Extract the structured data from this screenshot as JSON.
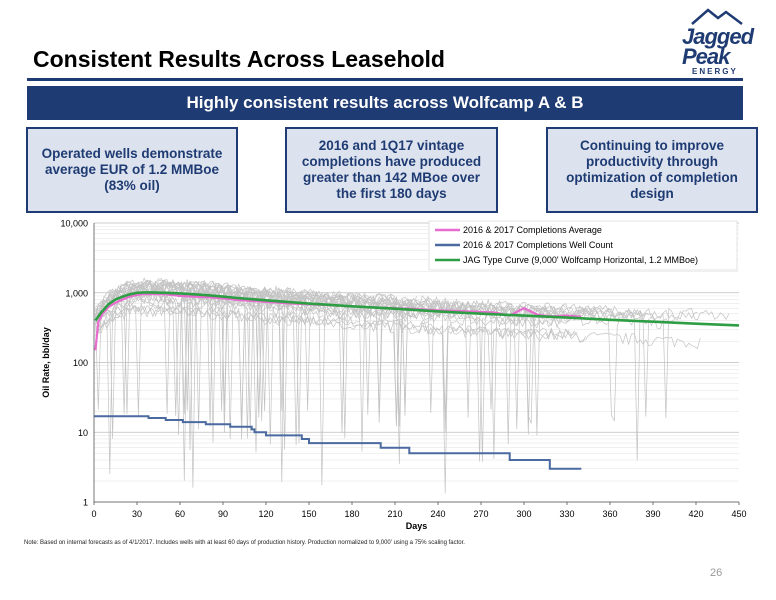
{
  "slide": {
    "title": "Consistent Results Across Leasehold",
    "banner": "Highly consistent results across Wolfcamp A & B",
    "boxes": [
      "Operated wells demonstrate average EUR of 1.2 MMBoe (83% oil)",
      "2016 and 1Q17 vintage completions have produced greater than 142 MBoe over the first 180 days",
      "Continuing to improve productivity through optimization of completion design"
    ],
    "note": "Note: Based on internal forecasts as of 4/1/2017. Includes wells with at least 60 days of production history. Production normalized to 9,000' using a 75% scaling factor.",
    "page_number": "26"
  },
  "logo": {
    "line1": "Jagged",
    "line2": "Peak",
    "line3": "ENERGY"
  },
  "colors": {
    "navy": "#1f3b73",
    "box_fill": "#dde3ee",
    "average": "#e86ccf",
    "well_count": "#4a6aa0",
    "type_curve": "#2e9e44",
    "individual_wells": "#c3c3c3"
  },
  "chart_data": {
    "type": "line",
    "y_scale": "log",
    "xlim": [
      0,
      450
    ],
    "ylim": [
      1,
      10000
    ],
    "xlabel": "Days",
    "ylabel": "Oil Rate, bbl/day",
    "x_ticks": [
      0,
      30,
      60,
      90,
      120,
      150,
      180,
      210,
      240,
      270,
      300,
      330,
      360,
      390,
      420,
      450
    ],
    "y_ticks": [
      1,
      10,
      100,
      1000,
      10000
    ],
    "y_tick_labels": [
      "1",
      "10",
      "100",
      "1,000",
      "10,000"
    ],
    "grid": "horizontal",
    "legend_position": "top-right",
    "series": [
      {
        "name": "2016 & 2017 Completions Average",
        "x": [
          1,
          3,
          6,
          10,
          15,
          20,
          25,
          30,
          35,
          40,
          50,
          60,
          70,
          80,
          90,
          100,
          120,
          140,
          160,
          180,
          200,
          220,
          240,
          260,
          280,
          290,
          300,
          310,
          320,
          330,
          340
        ],
        "y": [
          150,
          380,
          500,
          620,
          720,
          800,
          880,
          930,
          960,
          960,
          950,
          900,
          880,
          860,
          830,
          790,
          740,
          700,
          670,
          640,
          610,
          590,
          560,
          540,
          520,
          470,
          600,
          480,
          460,
          470,
          450
        ]
      },
      {
        "name": "2016 & 2017 Completions Well Count",
        "x": [
          0,
          20,
          20,
          38,
          38,
          50,
          50,
          62,
          62,
          78,
          78,
          95,
          95,
          110,
          110,
          112,
          112,
          120,
          120,
          145,
          145,
          150,
          150,
          165,
          165,
          200,
          200,
          220,
          220,
          260,
          260,
          290,
          290,
          318,
          318,
          340
        ],
        "y": [
          17,
          17,
          17,
          17,
          16,
          16,
          15,
          15,
          14,
          14,
          13,
          13,
          12,
          12,
          11,
          11,
          10,
          10,
          9,
          9,
          8,
          8,
          7,
          7,
          7,
          7,
          6,
          6,
          5,
          5,
          5,
          5,
          4,
          4,
          3,
          3
        ]
      },
      {
        "name": "JAG Type Curve (9,000' Wolfcamp Horizontal, 1.2 MMBoe)",
        "x": [
          1,
          5,
          10,
          15,
          20,
          25,
          30,
          35,
          40,
          50,
          60,
          70,
          80,
          90,
          100,
          120,
          150,
          180,
          210,
          240,
          270,
          300,
          330,
          360,
          390,
          420,
          450
        ],
        "y": [
          400,
          520,
          680,
          800,
          880,
          950,
          1000,
          1010,
          1010,
          1000,
          980,
          950,
          920,
          880,
          840,
          780,
          700,
          640,
          590,
          540,
          500,
          470,
          440,
          410,
          385,
          360,
          340
        ]
      }
    ],
    "background_series": "individual well traces"
  }
}
